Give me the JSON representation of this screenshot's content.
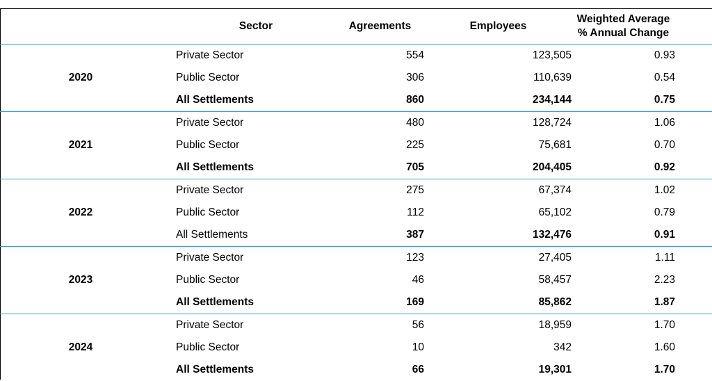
{
  "headers": {
    "sector": "Sector",
    "agreements": "Agreements",
    "employees": "Employees",
    "change_line1": "Weighted Average",
    "change_line2": "% Annual Change"
  },
  "groups": [
    {
      "year": "2020",
      "rows": [
        {
          "sector": "Private Sector",
          "agreements": "554",
          "employees": "123,505",
          "change": "0.93"
        },
        {
          "sector": "Public Sector",
          "agreements": "306",
          "employees": "110,639",
          "change": "0.54"
        },
        {
          "sector": "All Settlements",
          "agreements": "860",
          "employees": "234,144",
          "change": "0.75"
        }
      ]
    },
    {
      "year": "2021",
      "rows": [
        {
          "sector": "Private Sector",
          "agreements": "480",
          "employees": "128,724",
          "change": "1.06"
        },
        {
          "sector": "Public Sector",
          "agreements": "225",
          "employees": "75,681",
          "change": "0.70"
        },
        {
          "sector": "All Settlements",
          "agreements": "705",
          "employees": "204,405",
          "change": "0.92"
        }
      ]
    },
    {
      "year": "2022",
      "rows": [
        {
          "sector": "Private Sector",
          "agreements": "275",
          "employees": "67,374",
          "change": "1.02"
        },
        {
          "sector": "Public Sector",
          "agreements": "112",
          "employees": "65,102",
          "change": "0.79"
        },
        {
          "sector": "All Settlements",
          "agreements": "387",
          "employees": "132,476",
          "change": "0.91"
        }
      ]
    },
    {
      "year": "2023",
      "rows": [
        {
          "sector": "Private Sector",
          "agreements": "123",
          "employees": "27,405",
          "change": "1.11"
        },
        {
          "sector": "Public Sector",
          "agreements": "46",
          "employees": "58,457",
          "change": "2.23"
        },
        {
          "sector": "All Settlements",
          "agreements": "169",
          "employees": "85,862",
          "change": "1.87"
        }
      ]
    },
    {
      "year": "2024",
      "rows": [
        {
          "sector": "Private Sector",
          "agreements": "56",
          "employees": "18,959",
          "change": "1.70"
        },
        {
          "sector": "Public Sector",
          "agreements": "10",
          "employees": "342",
          "change": "1.60"
        },
        {
          "sector": "All Settlements",
          "agreements": "66",
          "employees": "19,301",
          "change": "1.70"
        }
      ]
    }
  ],
  "colors": {
    "rule": "#2f9fd3",
    "border": "#000000"
  }
}
